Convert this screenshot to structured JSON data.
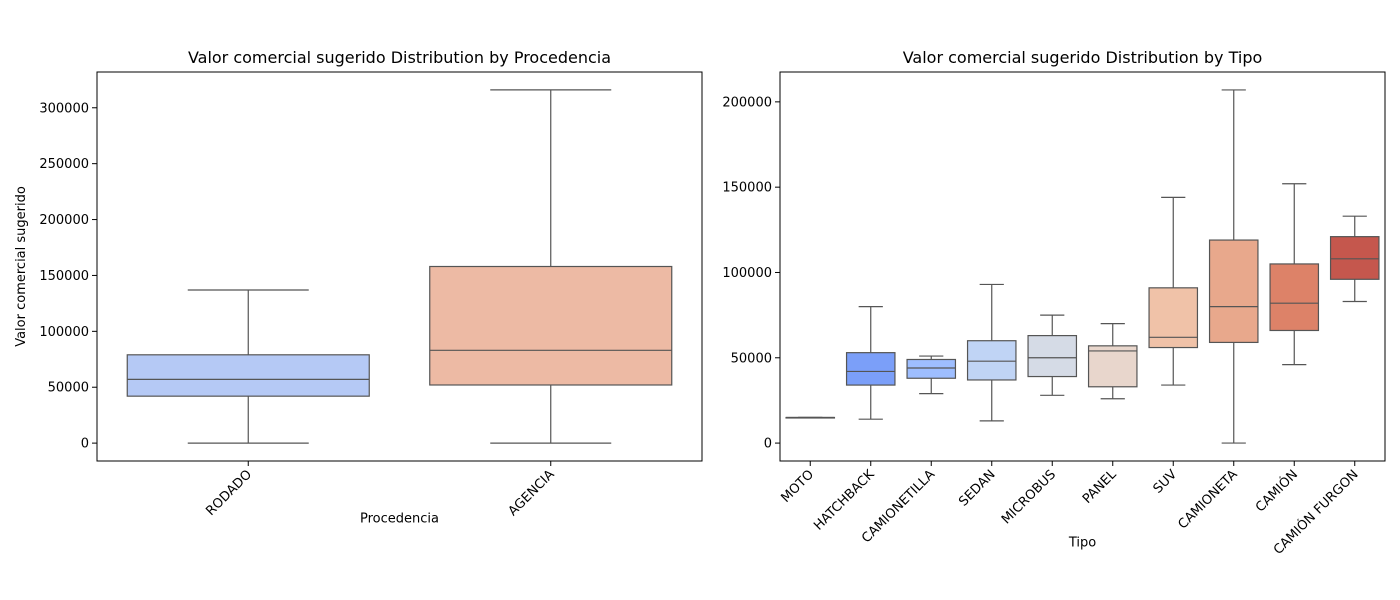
{
  "chart_data": [
    {
      "type": "box",
      "title": "Valor comercial sugerido Distribution by Procedencia",
      "x_label": "Procedencia",
      "y_label": "Valor comercial sugerido",
      "categories": [
        "RODADO",
        "AGENCIA"
      ],
      "colors": [
        "#b5c9f5",
        "#edbaa4"
      ],
      "boxes": [
        {
          "min": 0,
          "q1": 42000,
          "median": 57000,
          "q3": 79000,
          "max": 137000
        },
        {
          "min": 0,
          "q1": 52000,
          "median": 83000,
          "q3": 158000,
          "max": 316000
        }
      ],
      "ylim": [
        -16000,
        332000
      ],
      "yticks": [
        0,
        50000,
        100000,
        150000,
        200000,
        250000,
        300000
      ]
    },
    {
      "type": "box",
      "title": "Valor comercial sugerido Distribution by Tipo",
      "x_label": "Tipo",
      "categories": [
        "MOTO",
        "HATCHBACK",
        "CAMIONETILLA",
        "SEDAN",
        "MICROBUS",
        "PANEL",
        "SUV",
        "CAMIONETA",
        "CAMIÓN",
        "CAMIÓN FURGON"
      ],
      "colors": [
        "#5875e0",
        "#7b9ff9",
        "#9ebeff",
        "#c0d4f5",
        "#d5dbe6",
        "#e8d6cc",
        "#f0c2a8",
        "#e8a88c",
        "#dd8268",
        "#c5574d"
      ],
      "boxes": [
        {
          "min": 15000,
          "q1": 15000,
          "median": 15000,
          "q3": 15000,
          "max": 15000
        },
        {
          "min": 14000,
          "q1": 34000,
          "median": 42000,
          "q3": 53000,
          "max": 80000
        },
        {
          "min": 29000,
          "q1": 38000,
          "median": 44000,
          "q3": 49000,
          "max": 51000
        },
        {
          "min": 13000,
          "q1": 37000,
          "median": 48000,
          "q3": 60000,
          "max": 93000
        },
        {
          "min": 28000,
          "q1": 39000,
          "median": 50000,
          "q3": 63000,
          "max": 75000
        },
        {
          "min": 26000,
          "q1": 33000,
          "median": 54000,
          "q3": 57000,
          "max": 70000
        },
        {
          "min": 34000,
          "q1": 56000,
          "median": 62000,
          "q3": 91000,
          "max": 144000
        },
        {
          "min": 0,
          "q1": 59000,
          "median": 80000,
          "q3": 119000,
          "max": 207000
        },
        {
          "min": 46000,
          "q1": 66000,
          "median": 82000,
          "q3": 105000,
          "max": 152000
        },
        {
          "min": 83000,
          "q1": 96000,
          "median": 108000,
          "q3": 121000,
          "max": 133000
        }
      ],
      "ylim": [
        -10500,
        217500
      ],
      "yticks": [
        0,
        50000,
        100000,
        150000,
        200000
      ]
    }
  ]
}
